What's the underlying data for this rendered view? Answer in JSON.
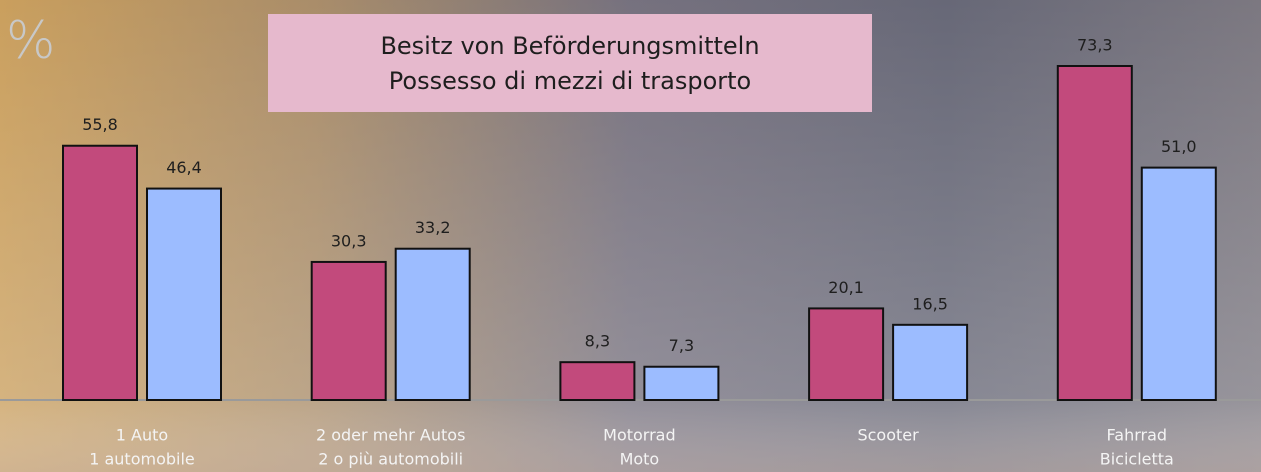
{
  "chart_data": {
    "type": "bar",
    "title": "Besitz von Beförderungsmitteln",
    "subtitle": "Possesso di mezzi di trasporto",
    "unit": "%",
    "categories": [
      [
        "1 Auto",
        "1 automobile"
      ],
      [
        "2 oder mehr Autos",
        "2 o più automobili"
      ],
      [
        "Motorrad",
        "Moto"
      ],
      [
        "Scooter"
      ],
      [
        "Fahrrad",
        "Bicicletta"
      ]
    ],
    "series": [
      {
        "color": "#c24a7c",
        "values": [
          55.8,
          30.3,
          8.3,
          20.1,
          73.3
        ],
        "value_labels": [
          "55,8",
          "30,3",
          "8,3",
          "20,1",
          "73,3"
        ]
      },
      {
        "color": "#9cbcff",
        "values": [
          46.4,
          33.2,
          7.3,
          16.5,
          51.0
        ],
        "value_labels": [
          "46,4",
          "33,2",
          "7,3",
          "16,5",
          "51,0"
        ]
      }
    ]
  }
}
